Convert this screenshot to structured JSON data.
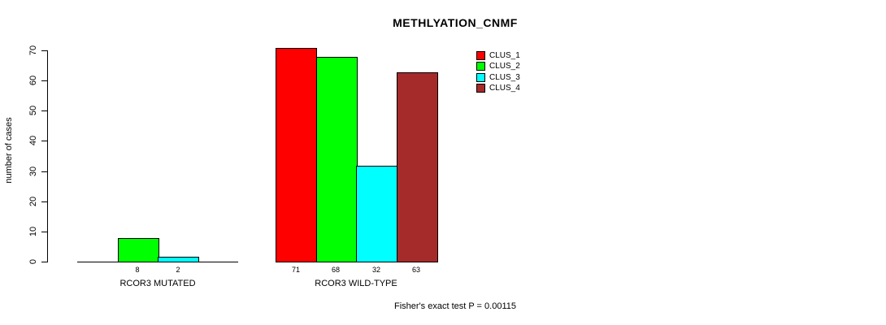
{
  "title": "METHLYATION_CNMF",
  "footer": "Fisher's exact test P = 0.00115",
  "y_axis": {
    "label": "number of cases",
    "ticks": [
      0,
      10,
      20,
      30,
      40,
      50,
      60,
      70
    ]
  },
  "legend": {
    "position": "top-right",
    "items": [
      {
        "name": "CLUS_1",
        "color": "#FF0000"
      },
      {
        "name": "CLUS_2",
        "color": "#00FF00"
      },
      {
        "name": "CLUS_3",
        "color": "#00FFFF"
      },
      {
        "name": "CLUS_4",
        "color": "#A52A2A"
      }
    ]
  },
  "chart_data": {
    "type": "bar",
    "title": "METHLYATION_CNMF",
    "xlabel": "",
    "ylabel": "number of cases",
    "ylim": [
      0,
      70
    ],
    "grid": false,
    "legend_position": "top-right",
    "series": [
      "CLUS_1",
      "CLUS_2",
      "CLUS_3",
      "CLUS_4"
    ],
    "colors": [
      "#FF0000",
      "#00FF00",
      "#00FFFF",
      "#A52A2A"
    ],
    "groups": [
      {
        "label": "RCOR3 MUTATED",
        "bars": [
          {
            "series": "CLUS_1",
            "value": 0,
            "label": ""
          },
          {
            "series": "CLUS_2",
            "value": 8,
            "label": "8"
          },
          {
            "series": "CLUS_3",
            "value": 2,
            "label": "2"
          },
          {
            "series": "CLUS_4",
            "value": 0,
            "label": ""
          }
        ]
      },
      {
        "label": "RCOR3 WILD-TYPE",
        "bars": [
          {
            "series": "CLUS_1",
            "value": 71,
            "label": "71"
          },
          {
            "series": "CLUS_2",
            "value": 68,
            "label": "68"
          },
          {
            "series": "CLUS_3",
            "value": 32,
            "label": "32"
          },
          {
            "series": "CLUS_4",
            "value": 63,
            "label": "63"
          }
        ]
      }
    ],
    "annotation": "Fisher's exact test P = 0.00115"
  }
}
